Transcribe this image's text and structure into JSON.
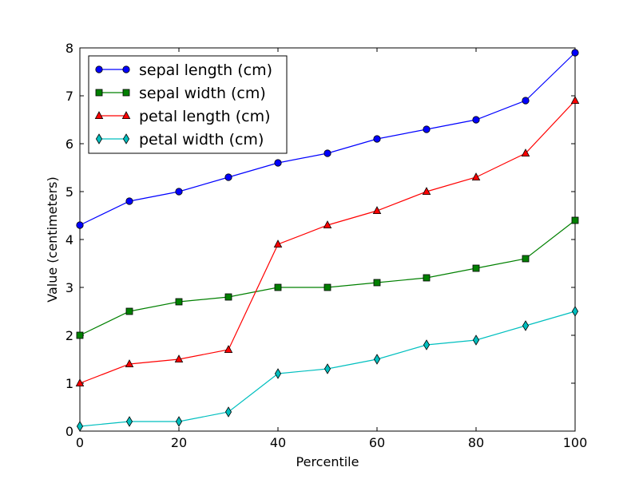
{
  "chart_data": {
    "type": "line",
    "title": "",
    "xlabel": "Percentile",
    "ylabel": "Value (centimeters)",
    "x": [
      0,
      10,
      20,
      30,
      40,
      50,
      60,
      70,
      80,
      90,
      100
    ],
    "xlim": [
      0,
      100
    ],
    "ylim": [
      0,
      8
    ],
    "xticks": [
      0,
      20,
      40,
      60,
      80,
      100
    ],
    "yticks": [
      0,
      1,
      2,
      3,
      4,
      5,
      6,
      7,
      8
    ],
    "grid": false,
    "legend_position": "top-left",
    "series": [
      {
        "name": "sepal length (cm)",
        "color": "#0000ff",
        "marker": "circle",
        "values": [
          4.3,
          4.8,
          5.0,
          5.3,
          5.6,
          5.8,
          6.1,
          6.3,
          6.5,
          6.9,
          7.9
        ]
      },
      {
        "name": "sepal width (cm)",
        "color": "#008000",
        "marker": "square",
        "values": [
          2.0,
          2.5,
          2.7,
          2.8,
          3.0,
          3.0,
          3.1,
          3.2,
          3.4,
          3.6,
          4.4
        ]
      },
      {
        "name": "petal length (cm)",
        "color": "#ff0000",
        "marker": "triangle",
        "values": [
          1.0,
          1.4,
          1.5,
          1.7,
          3.9,
          4.3,
          4.6,
          5.0,
          5.3,
          5.8,
          6.9
        ]
      },
      {
        "name": "petal width (cm)",
        "color": "#00bfbf",
        "marker": "diamond",
        "values": [
          0.1,
          0.2,
          0.2,
          0.4,
          1.2,
          1.3,
          1.5,
          1.8,
          1.9,
          2.2,
          2.5
        ]
      }
    ]
  }
}
